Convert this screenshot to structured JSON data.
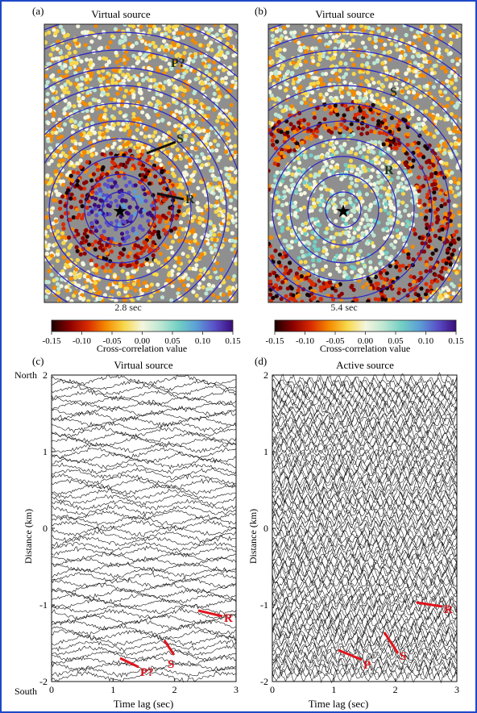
{
  "border_color": "#1e48c8",
  "panel_a": {
    "label": "(a)",
    "title": "Virtual source",
    "time": "2.8 sec",
    "annotations": [
      "P?",
      "S",
      "R"
    ],
    "rings": 8
  },
  "panel_b": {
    "label": "(b)",
    "title": "Virtual source",
    "time": "5.4 sec",
    "annotations": [
      "S",
      "R"
    ],
    "rings": 8
  },
  "colorbar": {
    "label": "Cross-correlation value",
    "ticks": [
      "-0.15",
      "-0.10",
      "-0.05",
      "0.00",
      "0.05",
      "0.10",
      "0.15"
    ],
    "colors": [
      "#1a0000",
      "#8b0000",
      "#d92b00",
      "#f58a00",
      "#f8d84a",
      "#f4f6de",
      "#bde7d3",
      "#72cfc5",
      "#5b9ed6",
      "#5a4fc8",
      "#3b0c7a"
    ]
  },
  "panel_c": {
    "label": "(c)",
    "title": "Virtual source",
    "ylabel": "Distance (km)",
    "xlabel": "Time lag (sec)",
    "north": "North",
    "south": "South",
    "yticks": [
      "2",
      "1",
      "0",
      "-1",
      "-2"
    ],
    "xticks": [
      "0",
      "1",
      "2",
      "3"
    ],
    "annotations": [
      "R",
      "S",
      "P?"
    ],
    "annotation_color": "#e0141e"
  },
  "panel_d": {
    "label": "(d)",
    "title": "Active source",
    "ylabel": "Distance (km)",
    "xlabel": "Time lag (sec)",
    "yticks": [
      "2",
      "1",
      "0",
      "-1",
      "-2"
    ],
    "xticks": [
      "0",
      "1",
      "2",
      "3"
    ],
    "annotations": [
      "R",
      "S",
      "P"
    ],
    "annotation_color": "#e0141e"
  }
}
